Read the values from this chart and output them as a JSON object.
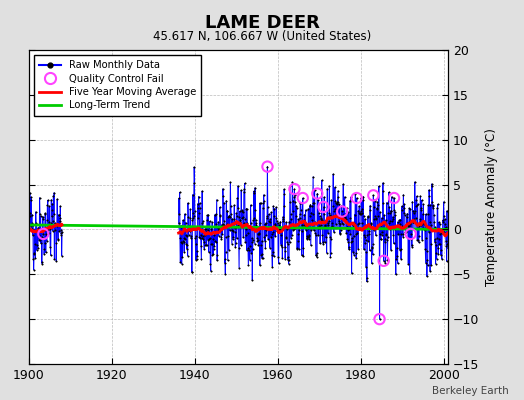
{
  "title": "LAME DEER",
  "subtitle": "45.617 N, 106.667 W (United States)",
  "ylabel": "Temperature Anomaly (°C)",
  "credit": "Berkeley Earth",
  "xlim": [
    1900,
    2001
  ],
  "ylim": [
    -15,
    20
  ],
  "yticks": [
    -15,
    -10,
    -5,
    0,
    5,
    10,
    15,
    20
  ],
  "xticks": [
    1900,
    1920,
    1940,
    1960,
    1980,
    2000
  ],
  "background_color": "#e0e0e0",
  "plot_background": "#ffffff",
  "raw_color": "#0000ff",
  "ma_color": "#ff0000",
  "trend_color": "#00cc00",
  "qc_color": "#ff44ff",
  "seed": 42,
  "gap_start": 1908,
  "gap_end": 1936,
  "data_start": 1900,
  "data_end": 2001,
  "months_per_year": 12
}
